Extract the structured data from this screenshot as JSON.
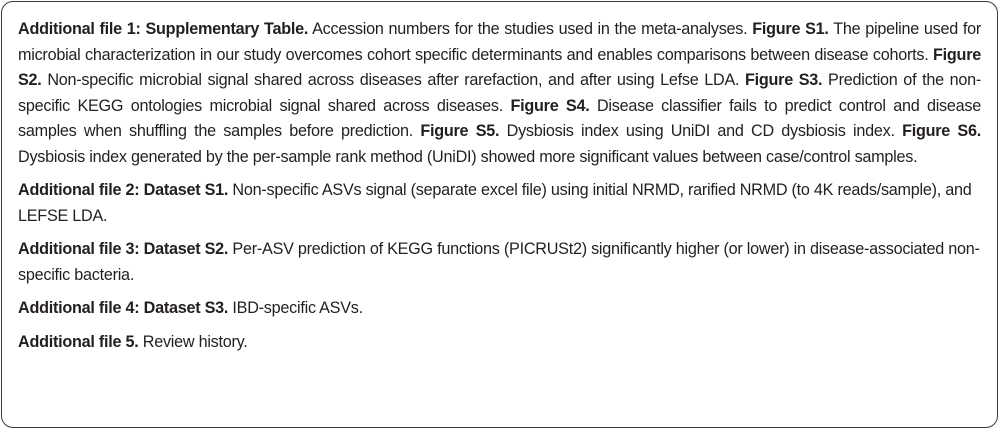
{
  "entries": [
    {
      "label": "Additional file 1: Supplementary Table.",
      "segments": [
        {
          "bold": false,
          "text": " Accession numbers for the studies used in the meta-analyses. "
        },
        {
          "bold": true,
          "text": "Figure S1."
        },
        {
          "bold": false,
          "text": " The pipeline used for microbial characterization in our study overcomes cohort specific determinants and enables comparisons between disease cohorts. "
        },
        {
          "bold": true,
          "text": "Figure S2."
        },
        {
          "bold": false,
          "text": " Non-specific microbial signal shared across diseases after rarefaction, and after using Lefse LDA. "
        },
        {
          "bold": true,
          "text": "Figure S3."
        },
        {
          "bold": false,
          "text": " Prediction of the non-specific KEGG ontologies microbial signal shared across diseases. "
        },
        {
          "bold": true,
          "text": "Figure S4."
        },
        {
          "bold": false,
          "text": " Disease classifier fails to predict control and disease samples when shuffling the samples before prediction. "
        },
        {
          "bold": true,
          "text": "Figure S5."
        },
        {
          "bold": false,
          "text": " Dysbiosis index using UniDI and CD dysbiosis index. "
        },
        {
          "bold": true,
          "text": "Figure S6."
        },
        {
          "bold": false,
          "text": " Dysbiosis index generated by the per-sample rank method (UniDI) showed more significant values between case/control samples."
        }
      ]
    },
    {
      "label": "Additional file 2: Dataset S1.",
      "segments": [
        {
          "bold": false,
          "text": " Non-specific ASVs signal (separate excel file) using initial NRMD, rarified NRMD (to 4K reads/sample), and LEFSE LDA."
        }
      ]
    },
    {
      "label": "Additional file 3: Dataset S2.",
      "segments": [
        {
          "bold": false,
          "text": " Per-ASV prediction of KEGG functions (PICRUSt2) significantly higher (or lower) in disease-associated non-specific bacteria."
        }
      ]
    },
    {
      "label": "Additional file 4: Dataset S3.",
      "segments": [
        {
          "bold": false,
          "text": " IBD-specific ASVs."
        }
      ]
    },
    {
      "label": "Additional file 5.",
      "segments": [
        {
          "bold": false,
          "text": " Review history."
        }
      ]
    }
  ]
}
